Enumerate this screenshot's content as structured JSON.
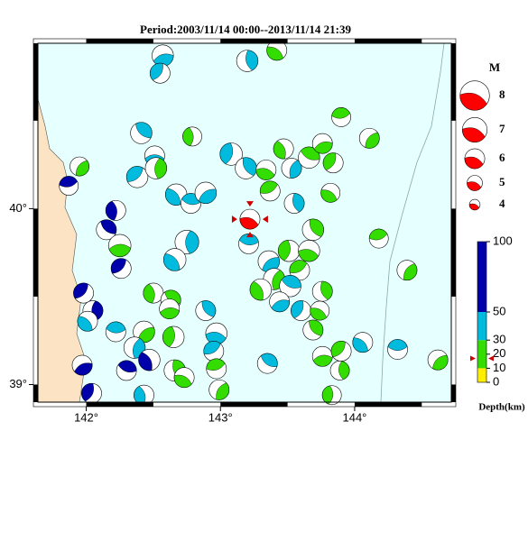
{
  "title": "Period:2003/11/14 00:00--2013/11/14 21:39",
  "xlim": [
    141.64,
    144.72
  ],
  "ylim": [
    38.9,
    40.94
  ],
  "xticks": [
    {
      "value": 142,
      "label": "142°"
    },
    {
      "value": 143,
      "label": "143°"
    },
    {
      "value": 144,
      "label": "144°"
    }
  ],
  "yticks": [
    {
      "value": 39,
      "label": "39°"
    },
    {
      "value": 40,
      "label": "40°"
    }
  ],
  "events": [
    [
      142.57,
      40.87,
      40,
      6.3
    ],
    [
      142.55,
      40.77,
      40,
      6.0
    ],
    [
      143.2,
      40.84,
      40,
      6.3
    ],
    [
      143.42,
      40.9,
      20,
      6.0
    ],
    [
      143.9,
      40.52,
      20,
      5.8
    ],
    [
      144.11,
      40.4,
      10,
      6.0
    ],
    [
      142.79,
      40.41,
      20,
      5.8
    ],
    [
      142.41,
      40.43,
      40,
      6.3
    ],
    [
      142.51,
      40.3,
      40,
      6.0
    ],
    [
      142.38,
      40.18,
      40,
      6.3
    ],
    [
      142.52,
      40.23,
      20,
      6.3
    ],
    [
      142.67,
      40.08,
      40,
      6.3
    ],
    [
      142.78,
      40.03,
      40,
      6.0
    ],
    [
      142.89,
      40.09,
      40,
      6.3
    ],
    [
      143.08,
      40.31,
      40,
      6.5
    ],
    [
      143.19,
      40.23,
      40,
      6.3
    ],
    [
      143.34,
      40.22,
      20,
      6.0
    ],
    [
      143.37,
      40.1,
      20,
      6.0
    ],
    [
      143.53,
      40.23,
      40,
      6.0
    ],
    [
      143.47,
      40.34,
      20,
      6.0
    ],
    [
      143.66,
      40.29,
      10,
      6.3
    ],
    [
      143.76,
      40.37,
      10,
      6.0
    ],
    [
      143.84,
      40.26,
      20,
      6.0
    ],
    [
      143.55,
      40.03,
      40,
      6.0
    ],
    [
      143.82,
      40.09,
      20,
      5.8
    ],
    [
      141.87,
      40.13,
      60,
      5.8
    ],
    [
      141.95,
      40.24,
      10,
      5.8
    ],
    [
      142.22,
      39.99,
      60,
      6.0
    ],
    [
      142.15,
      39.88,
      60,
      6.0
    ],
    [
      142.25,
      39.79,
      20,
      6.5
    ],
    [
      142.26,
      39.66,
      60,
      6.0
    ],
    [
      142.75,
      39.81,
      40,
      6.8
    ],
    [
      142.66,
      39.71,
      40,
      6.5
    ],
    [
      143.21,
      39.8,
      40,
      6.0
    ],
    [
      143.36,
      39.7,
      40,
      6.3
    ],
    [
      143.51,
      39.76,
      20,
      6.3
    ],
    [
      143.69,
      39.88,
      10,
      6.3
    ],
    [
      143.66,
      39.76,
      20,
      6.3
    ],
    [
      143.59,
      39.65,
      10,
      6.0
    ],
    [
      143.4,
      39.6,
      20,
      6.3
    ],
    [
      143.3,
      39.54,
      20,
      6.3
    ],
    [
      143.52,
      39.56,
      40,
      6.3
    ],
    [
      143.44,
      39.47,
      40,
      6.0
    ],
    [
      143.6,
      39.42,
      40,
      6.0
    ],
    [
      143.76,
      39.53,
      10,
      6.0
    ],
    [
      143.74,
      39.42,
      20,
      5.8
    ],
    [
      144.18,
      39.83,
      10,
      5.8
    ],
    [
      144.39,
      39.65,
      20,
      6.0
    ],
    [
      142.5,
      39.52,
      20,
      6.0
    ],
    [
      142.63,
      39.48,
      10,
      6.0
    ],
    [
      142.62,
      39.43,
      10,
      6.0
    ],
    [
      141.98,
      39.52,
      60,
      6.0
    ],
    [
      142.05,
      39.42,
      60,
      6.0
    ],
    [
      142.01,
      39.36,
      40,
      6.0
    ],
    [
      142.22,
      39.3,
      40,
      6.0
    ],
    [
      142.43,
      39.3,
      20,
      6.3
    ],
    [
      142.65,
      39.27,
      20,
      6.3
    ],
    [
      142.89,
      39.42,
      40,
      6.0
    ],
    [
      142.97,
      39.29,
      40,
      6.3
    ],
    [
      142.95,
      39.19,
      40,
      6.0
    ],
    [
      142.36,
      39.21,
      40,
      6.3
    ],
    [
      142.47,
      39.14,
      60,
      6.3
    ],
    [
      142.3,
      39.08,
      60,
      6.0
    ],
    [
      141.97,
      39.11,
      60,
      6.0
    ],
    [
      142.04,
      38.95,
      60,
      6.0
    ],
    [
      142.66,
      39.08,
      10,
      6.3
    ],
    [
      142.73,
      39.04,
      10,
      6.0
    ],
    [
      142.97,
      39.09,
      20,
      6.0
    ],
    [
      142.99,
      38.97,
      20,
      6.0
    ],
    [
      142.43,
      38.94,
      40,
      6.0
    ],
    [
      143.35,
      39.12,
      40,
      6.0
    ],
    [
      143.76,
      39.16,
      20,
      6.0
    ],
    [
      143.9,
      39.19,
      10,
      6.0
    ],
    [
      143.89,
      39.08,
      10,
      5.8
    ],
    [
      144.06,
      39.24,
      40,
      6.0
    ],
    [
      144.32,
      39.2,
      40,
      6.0
    ],
    [
      144.62,
      39.14,
      10,
      6.0
    ],
    [
      143.83,
      38.94,
      20,
      5.8
    ],
    [
      143.69,
      39.31,
      20,
      6.0
    ]
  ],
  "main_event": [
    143.22,
    39.94,
    17,
    6.0
  ],
  "main_color": "#ff0000",
  "magnitude_label": "M",
  "magnitudes": [
    8,
    7,
    6,
    5,
    4
  ],
  "depth_label": "Depth(km)",
  "depth_lim": [
    0,
    100
  ],
  "depth_ticks": [
    100,
    50,
    30,
    20,
    10,
    0
  ],
  "depth_bands": [
    {
      "from": 0,
      "to": 10,
      "color": "#ffee00"
    },
    {
      "from": 10,
      "to": 30,
      "color": "#33dd00"
    },
    {
      "from": 30,
      "to": 50,
      "color": "#00bbdd"
    },
    {
      "from": 50,
      "to": 100,
      "color": "#0000aa"
    }
  ]
}
